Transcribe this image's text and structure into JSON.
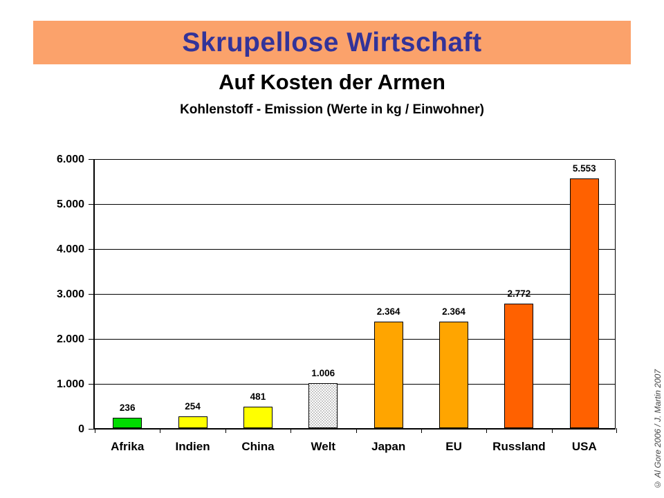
{
  "header": {
    "banner_title": "Skrupellose Wirtschaft",
    "banner_bg": "#FBA26B",
    "banner_text_color": "#333399",
    "subtitle": "Auf Kosten der Armen",
    "subsubtitle": "Kohlenstoff - Emission (Werte in kg / Einwohner)"
  },
  "chart_data": {
    "type": "bar",
    "title": "Kohlenstoff - Emission (Werte in kg / Einwohner)",
    "categories": [
      "Afrika",
      "Indien",
      "China",
      "Welt",
      "Japan",
      "EU",
      "Russland",
      "USA"
    ],
    "values": [
      236,
      254,
      481,
      1006,
      2364,
      2364,
      2772,
      5553
    ],
    "value_labels": [
      "236",
      "254",
      "481",
      "1.006",
      "2.364",
      "2.364",
      "2.772",
      "5.553"
    ],
    "bar_colors": [
      "#00DC00",
      "#FFFF00",
      "#FFFF00",
      "checker",
      "#FFA500",
      "#FFA500",
      "#FF6100",
      "#FF6100"
    ],
    "checker_pattern_color": "#C6C6C6",
    "ylim": [
      0,
      6000
    ],
    "ytick_step": 1000,
    "ytick_labels": [
      "0",
      "1.000",
      "2.000",
      "3.000",
      "4.000",
      "5.000",
      "6.000"
    ],
    "xlabel": "",
    "ylabel": "",
    "grid": true,
    "legend": false
  },
  "footer": {
    "copyright": "© Al Gore 2006  /  J. Martin 2007"
  }
}
